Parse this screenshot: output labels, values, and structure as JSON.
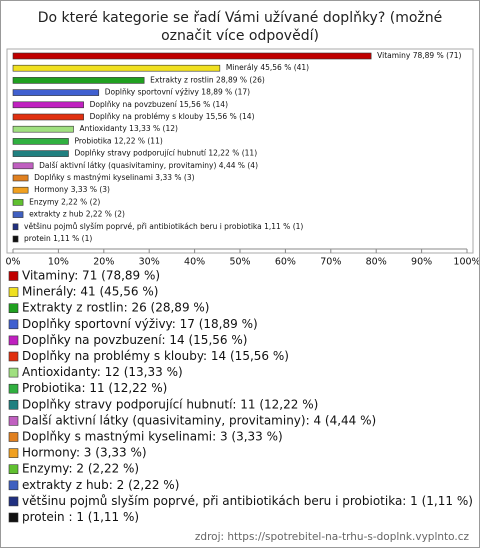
{
  "chart_data": {
    "type": "bar",
    "orientation": "horizontal",
    "title": "Do které kategorie se řadí Vámi užívané doplňky? (možné označit více odpovědí)",
    "categories": [
      "Vitaminy",
      "Minerály",
      "Extrakty z rostlin",
      "Doplňky sportovní výživy",
      "Doplňky na povzbuzení",
      "Doplňky na problémy s klouby",
      "Antioxidanty",
      "Probiotika",
      "Doplňky stravy podporující hubnutí",
      "Další aktivní látky (quasivitaminy, provitaminy)",
      "Doplňky s mastnými kyselinami",
      "Hormony",
      "Enzymy",
      "extrakty z hub",
      "většinu pojmů slyším poprvé, při antibiotikách beru i probiotika",
      "protein"
    ],
    "values": [
      78.89,
      45.56,
      28.89,
      18.89,
      15.56,
      15.56,
      13.33,
      12.22,
      12.22,
      4.44,
      3.33,
      3.33,
      2.22,
      2.22,
      1.11,
      1.11
    ],
    "value_labels": [
      "Vitaminy 78,89 % (71)",
      "Minerály 45,56 % (41)",
      "Extrakty z rostlin 28,89 % (26)",
      "Doplňky sportovní výživy 18,89 % (17)",
      "Doplňky na povzbuzení 15,56 % (14)",
      "Doplňky na problémy s klouby 15,56 % (14)",
      "Antioxidanty 13,33 % (12)",
      "Probiotika 12,22 % (11)",
      "Doplňky stravy podporující hubnutí 12,22 % (11)",
      "Další aktivní látky (quasivitaminy, provitaminy) 4,44 % (4)",
      "Doplňky s mastnými kyselinami 3,33 % (3)",
      "Hormony 3,33 % (3)",
      "Enzymy 2,22 % (2)",
      "extrakty z hub 2,22 % (2)",
      "většinu pojmů slyším poprvé, při antibiotikách beru i probiotika 1,11 % (1)",
      "protein 1,11 % (1)"
    ],
    "legend_labels": [
      "Vitaminy: 71 (78,89 %)",
      "Minerály: 41 (45,56 %)",
      "Extrakty z rostlin: 26 (28,89 %)",
      "Doplňky sportovní výživy: 17 (18,89 %)",
      "Doplňky na povzbuzení: 14 (15,56 %)",
      "Doplňky na problémy s klouby: 14 (15,56 %)",
      "Antioxidanty: 12 (13,33 %)",
      "Probiotika: 11 (12,22 %)",
      "Doplňky stravy podporující hubnutí: 11 (12,22 %)",
      "Další aktivní látky (quasivitaminy, provitaminy): 4 (4,44 %)",
      "Doplňky s mastnými kyselinami: 3 (3,33 %)",
      "Hormony: 3 (3,33 %)",
      "Enzymy: 2 (2,22 %)",
      "extrakty z hub: 2 (2,22 %)",
      "většinu pojmů slyším poprvé, při antibiotikách beru i probiotika: 1 (1,11 %)",
      "protein : 1 (1,11 %)"
    ],
    "colors": [
      "#c00000",
      "#f0e020",
      "#20a020",
      "#4060d0",
      "#c020c0",
      "#e03010",
      "#a0e080",
      "#30b040",
      "#208080",
      "#c060c0",
      "#e08020",
      "#f0a020",
      "#60c030",
      "#4060c0",
      "#203080",
      "#111111"
    ],
    "xlim": [
      0,
      100
    ],
    "xticks": [
      {
        "value": 0,
        "label": "0%"
      },
      {
        "value": 10,
        "label": "10%"
      },
      {
        "value": 20,
        "label": "20%"
      },
      {
        "value": 30,
        "label": "30%"
      },
      {
        "value": 40,
        "label": "40%"
      },
      {
        "value": 50,
        "label": "50%"
      },
      {
        "value": 60,
        "label": "60%"
      },
      {
        "value": 70,
        "label": "70%"
      },
      {
        "value": 80,
        "label": "80%"
      },
      {
        "value": 90,
        "label": "90%"
      },
      {
        "value": 100,
        "label": "100%"
      }
    ],
    "source": "zdroj: https://spotrebitel-na-trhu-s-doplnk.vyplnto.cz"
  }
}
